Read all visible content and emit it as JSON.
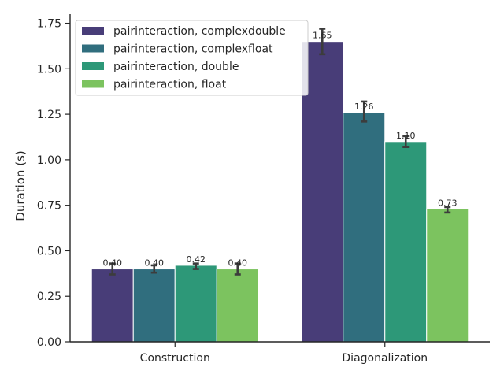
{
  "chart_data": {
    "type": "bar",
    "title": "",
    "xlabel": "",
    "ylabel": "Duration (s)",
    "categories": [
      "Construction",
      "Diagonalization"
    ],
    "ylim": [
      0,
      1.8
    ],
    "yticks": [
      0.0,
      0.25,
      0.5,
      0.75,
      1.0,
      1.25,
      1.5,
      1.75
    ],
    "ytick_labels": [
      "0.00",
      "0.25",
      "0.50",
      "0.75",
      "1.00",
      "1.25",
      "1.50",
      "1.75"
    ],
    "legend_position": "top-left",
    "grid": false,
    "series": [
      {
        "name": "pairinteraction, complexdouble",
        "color": "#483d78",
        "values": [
          0.4,
          1.65
        ],
        "err_low": [
          0.37,
          1.58
        ],
        "err_high": [
          0.43,
          1.72
        ],
        "labels": [
          "0.40",
          "1.65"
        ]
      },
      {
        "name": "pairinteraction, complexfloat",
        "color": "#306e7e",
        "values": [
          0.4,
          1.26
        ],
        "err_low": [
          0.38,
          1.21
        ],
        "err_high": [
          0.42,
          1.32
        ],
        "labels": [
          "0.40",
          "1.26"
        ]
      },
      {
        "name": "pairinteraction, double",
        "color": "#2d9878",
        "values": [
          0.42,
          1.1
        ],
        "err_low": [
          0.4,
          1.07
        ],
        "err_high": [
          0.43,
          1.13
        ],
        "labels": [
          "0.42",
          "1.10"
        ]
      },
      {
        "name": "pairinteraction, float",
        "color": "#7cc35f",
        "values": [
          0.4,
          0.73
        ],
        "err_low": [
          0.37,
          0.71
        ],
        "err_high": [
          0.43,
          0.74
        ],
        "labels": [
          "0.40",
          "0.73"
        ]
      }
    ]
  }
}
